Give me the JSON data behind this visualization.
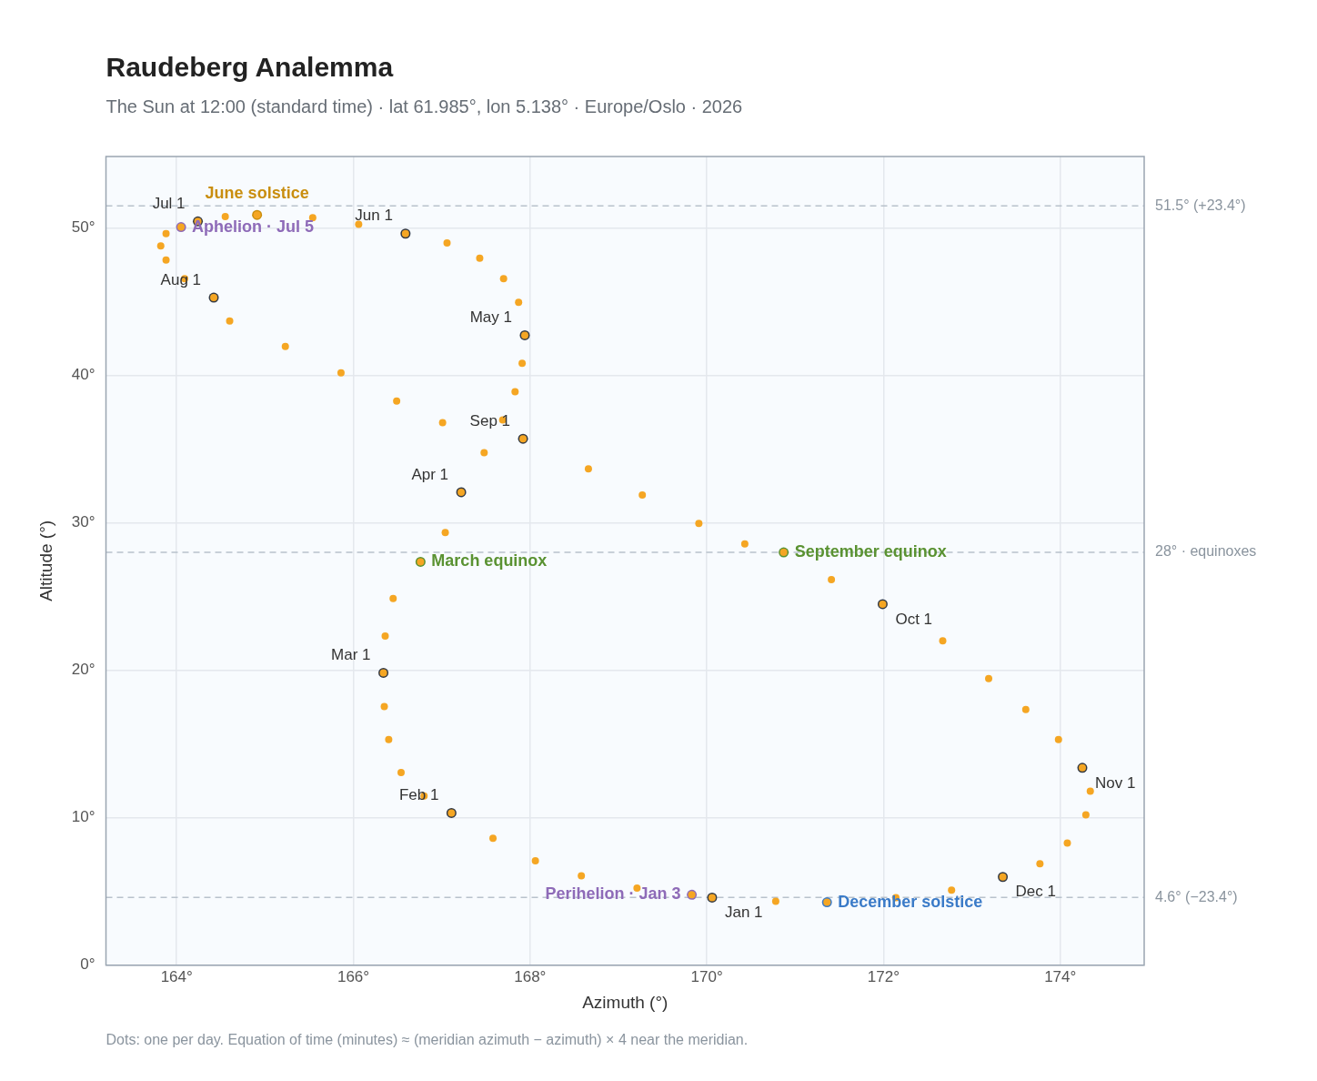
{
  "chart_data": {
    "type": "scatter",
    "title": "Raudeberg Analemma",
    "subtitle": "The Sun at 12:00 (standard time) · lat 61.985°, lon 5.138° · Europe/Oslo · 2026",
    "xlabel": "Azimuth (°)",
    "ylabel": "Altitude (°)",
    "xlim": [
      163.2,
      174.95
    ],
    "ylim": [
      0,
      54.85
    ],
    "xticks": [
      {
        "value": 164,
        "label": "164°"
      },
      {
        "value": 166,
        "label": "166°"
      },
      {
        "value": 168,
        "label": "168°"
      },
      {
        "value": 170,
        "label": "170°"
      },
      {
        "value": 172,
        "label": "172°"
      },
      {
        "value": 174,
        "label": "174°"
      }
    ],
    "yticks": [
      {
        "value": 0,
        "label": "0°"
      },
      {
        "value": 10,
        "label": "10°"
      },
      {
        "value": 20,
        "label": "20°"
      },
      {
        "value": 30,
        "label": "30°"
      },
      {
        "value": 40,
        "label": "40°"
      },
      {
        "value": 50,
        "label": "50°"
      }
    ],
    "grid": true,
    "legend": false,
    "marker": "circle",
    "ref_lines": [
      {
        "axis": "y",
        "value": 51.5,
        "label": "51.5° (+23.4°)",
        "color": "#b8c2cc",
        "line_style": "dashed"
      },
      {
        "axis": "y",
        "value": 28,
        "label": "28° · equinoxes",
        "color": "#b8c2cc",
        "line_style": "dashed"
      },
      {
        "axis": "y",
        "value": 4.6,
        "label": "4.6° (−23.4°)",
        "color": "#b8c2cc",
        "line_style": "dashed"
      }
    ],
    "annotations": [
      "Dots: one per day. Equation of time (minutes) ≈ (meridian azimuth − azimuth) × 4 near the meridian."
    ],
    "series": [
      {
        "type": "scatter",
        "color": "#f5a623",
        "x": [
          170.06,
          169.83,
          169.21,
          168.58,
          168.06,
          167.58,
          167.11,
          166.8,
          166.54,
          166.4,
          166.35,
          166.34,
          166.36,
          166.45,
          166.76,
          167.04,
          167.22,
          167.48,
          167.69,
          167.83,
          167.91,
          167.94,
          167.87,
          167.7,
          167.43,
          167.06,
          166.59,
          166.06,
          165.54,
          164.91,
          164.55,
          164.24,
          164.05,
          163.88,
          163.82,
          163.88,
          164.09,
          164.42,
          164.6,
          165.23,
          165.86,
          166.49,
          167.01,
          167.92,
          168.66,
          169.27,
          169.91,
          170.43,
          170.87,
          171.41,
          171.99,
          172.67,
          173.19,
          173.61,
          173.98,
          174.25,
          174.34,
          174.29,
          174.08,
          173.77,
          173.35,
          172.77,
          172.14,
          171.36,
          170.78
        ],
        "values": [
          4.59,
          4.78,
          5.23,
          6.06,
          7.08,
          8.61,
          10.33,
          11.48,
          13.07,
          15.31,
          17.54,
          19.83,
          22.32,
          24.87,
          27.36,
          29.34,
          32.08,
          34.76,
          36.99,
          38.9,
          40.82,
          42.73,
          44.96,
          46.56,
          47.96,
          48.98,
          49.62,
          50.26,
          50.7,
          50.89,
          50.77,
          50.45,
          50.06,
          49.62,
          48.79,
          47.83,
          46.56,
          45.28,
          43.69,
          41.96,
          40.18,
          38.27,
          36.8,
          35.71,
          33.67,
          31.89,
          29.97,
          28.57,
          28.0,
          26.15,
          24.49,
          22.0,
          19.45,
          17.35,
          15.31,
          13.39,
          11.8,
          10.2,
          8.29,
          6.89,
          5.99,
          5.1,
          4.59,
          4.27,
          4.34
        ]
      },
      {
        "type": "scatter",
        "color": "#343a44",
        "x": [
          170.06,
          167.11,
          166.34,
          167.22,
          167.94,
          166.59,
          164.24,
          164.42,
          167.92,
          171.99,
          174.25,
          173.35
        ],
        "values": [
          4.59,
          10.33,
          19.83,
          32.08,
          42.73,
          49.62,
          50.45,
          45.28,
          35.71,
          24.49,
          13.39,
          5.99
        ],
        "value_labels": [
          "Jan 1",
          "Feb 1",
          "Mar 1",
          "Apr 1",
          "May 1",
          "Jun 1",
          "Jul 1",
          "Aug 1",
          "Sep 1",
          "Oct 1",
          "Nov 1",
          "Dec 1"
        ]
      },
      {
        "type": "scatter",
        "colors": [
          "#8e6bb8",
          "#5a9232",
          "#c98e0e",
          "#8e6bb8",
          "#5a9232",
          "#3b7bc8"
        ],
        "x": [
          169.83,
          166.76,
          164.91,
          164.05,
          170.87,
          171.36
        ],
        "values": [
          4.78,
          27.36,
          50.89,
          50.06,
          28.0,
          4.27
        ],
        "value_labels": [
          "Perihelion · Jan 3",
          "March equinox",
          "June solstice",
          "Aphelion · Jul 5",
          "September equinox",
          "December solstice"
        ]
      }
    ]
  }
}
